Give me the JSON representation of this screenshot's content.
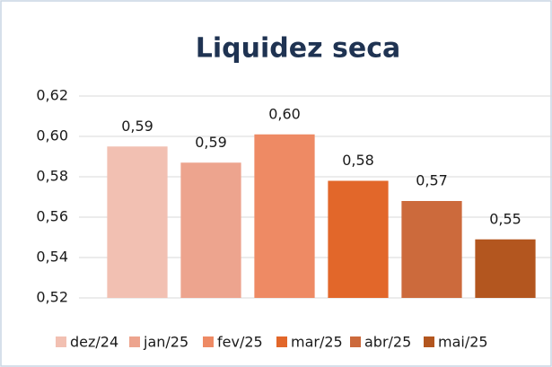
{
  "chart_data": {
    "type": "bar",
    "title": "Liquidez seca",
    "categories": [
      "dez/24",
      "jan/25",
      "fev/25",
      "mar/25",
      "abr/25",
      "mai/25"
    ],
    "values": [
      0.595,
      0.587,
      0.601,
      0.578,
      0.568,
      0.549
    ],
    "value_labels": [
      "0,59",
      "0,59",
      "0,60",
      "0,58",
      "0,57",
      "0,55"
    ],
    "colors": [
      "#f2c0b2",
      "#eda48e",
      "#ee8a64",
      "#e2672a",
      "#cc6a3c",
      "#b3561f"
    ],
    "ylim": [
      0.52,
      0.62
    ],
    "yticks": [
      {
        "value": 0.52,
        "label": "0,52"
      },
      {
        "value": 0.54,
        "label": "0,54"
      },
      {
        "value": 0.56,
        "label": "0,56"
      },
      {
        "value": 0.58,
        "label": "0,58"
      },
      {
        "value": 0.6,
        "label": "0,60"
      },
      {
        "value": 0.62,
        "label": "0,62"
      }
    ],
    "grid": true,
    "legend": "bottom"
  }
}
